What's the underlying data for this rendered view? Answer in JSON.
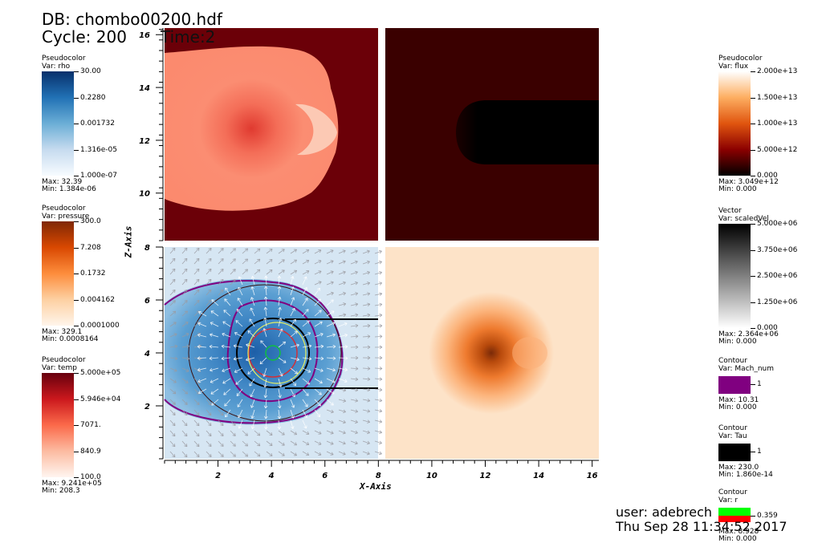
{
  "header": {
    "db_line": "DB: chombo00200.hdf",
    "cycle_line": "Cycle: 200",
    "time_line": "Time:2"
  },
  "legends_left": [
    {
      "title": "Pseudocolor",
      "var": "Var: rho",
      "ticks": [
        "30.00",
        "0.2280",
        "0.001732",
        "1.316e-05",
        "1.000e-07"
      ],
      "max": "Max:  32.39",
      "min": "Min:  1.384e-06",
      "colors": [
        "#08306b",
        "#2171b5",
        "#6baed6",
        "#c6dbef",
        "#f7fbff"
      ]
    },
    {
      "title": "Pseudocolor",
      "var": "Var: pressure",
      "ticks": [
        "300.0",
        "7.208",
        "0.1732",
        "0.004162",
        "0.0001000"
      ],
      "max": "Max:  329.1",
      "min": "Min:  0.0008164",
      "colors": [
        "#7f2704",
        "#d94801",
        "#fd8d3c",
        "#fdd0a2",
        "#fff5eb"
      ]
    },
    {
      "title": "Pseudocolor",
      "var": "Var: temp",
      "ticks": [
        "5.000e+05",
        "5.946e+04",
        "7071.",
        "840.9",
        "100.0"
      ],
      "max": "Max:  9.241e+05",
      "min": "Min:  208.3",
      "colors": [
        "#67000d",
        "#cb181d",
        "#fb6a4a",
        "#fcbba1",
        "#fff5f0"
      ]
    }
  ],
  "legends_right": [
    {
      "title": "Pseudocolor",
      "var": "Var: flux",
      "ticks": [
        "2.000e+13",
        "1.500e+13",
        "1.000e+13",
        "5.000e+12",
        "0.000"
      ],
      "max": "Max:  3.049e+12",
      "min": "Min:  0.000",
      "colors": [
        "#ffffff",
        "#fdae61",
        "#e0550f",
        "#8b0000",
        "#000000"
      ]
    },
    {
      "title": "Vector",
      "var": "Var: scaledVel",
      "ticks": [
        "5.000e+06",
        "3.750e+06",
        "2.500e+06",
        "1.250e+06",
        "0.000"
      ],
      "max": "Max:  2.364e+06",
      "min": "Min:  0.000",
      "colors": [
        "#000000",
        "#404040",
        "#808080",
        "#bfbfbf",
        "#ffffff"
      ]
    }
  ],
  "contours": [
    {
      "title": "Contour",
      "var": "Var: Mach_num",
      "tick": "1",
      "max": "Max:  10.31",
      "min": "Min:  0.000",
      "color": "#800080"
    },
    {
      "title": "Contour",
      "var": "Var: Tau",
      "tick": "1",
      "max": "Max:  230.0",
      "min": "Min:  1.860e-14",
      "color": "#000000"
    },
    {
      "title": "Contour",
      "var": "Var: r",
      "tick": "0.359",
      "max": "Max:  8.928",
      "min": "Min:  0.000",
      "color": "#00ff00",
      "color2": "#ff0000"
    }
  ],
  "footer": {
    "user": "user: adebrech",
    "date": "Thu Sep 28 11:34:52 2017"
  },
  "chart_data": {
    "type": "heatmap",
    "xlabel": "X-Axis",
    "ylabel": "Z-Axis",
    "xlim": [
      0,
      16.25
    ],
    "x_ticks": [
      "2",
      "4",
      "6",
      "8",
      "10",
      "12",
      "14",
      "16"
    ],
    "upper_panel": {
      "ylim": [
        8.2,
        16.25
      ],
      "y_ticks": [
        "10",
        "12",
        "14",
        "16"
      ],
      "left_variable": "temp",
      "right_variable": "flux"
    },
    "lower_panel": {
      "ylim": [
        0,
        8
      ],
      "y_ticks": [
        "2",
        "4",
        "6",
        "8"
      ],
      "left_variable": "rho",
      "right_variable": "pressure",
      "overlays": [
        "scaledVel",
        "Mach_num",
        "Tau",
        "r"
      ]
    },
    "grid": false
  }
}
